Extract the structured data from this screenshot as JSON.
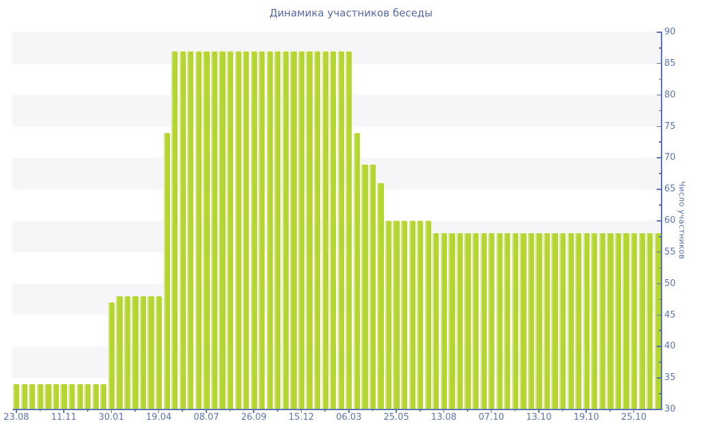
{
  "title": "Динамика участников беседы",
  "y_axis": {
    "label": "Число участников",
    "min": 30,
    "max": 90,
    "major_step": 5,
    "minor_step": 2.5,
    "major_tick_labels": [
      "30",
      "35",
      "40",
      "45",
      "50",
      "55",
      "60",
      "65",
      "70",
      "75",
      "80",
      "85",
      "90"
    ]
  },
  "x_axis": {
    "tick_labels": [
      "23.08",
      "11.11",
      "30.01",
      "19.04",
      "08.07",
      "26.09",
      "15.12",
      "06.03",
      "25.05",
      "13.08",
      "07.10",
      "13.10",
      "19.10",
      "25.10"
    ],
    "ticks_every_n_bars": 6,
    "first_tick_bar_index": 0
  },
  "chart_data": {
    "type": "bar",
    "title": "Динамика участников беседы",
    "ylabel": "Число участников",
    "ylim": [
      30,
      90
    ],
    "grid": "horizontal-stripes",
    "legend": "none",
    "x_tick_labels": [
      "23.08",
      "11.11",
      "30.01",
      "19.04",
      "08.07",
      "26.09",
      "15.12",
      "06.03",
      "25.05",
      "13.08",
      "07.10",
      "13.10",
      "19.10",
      "25.10"
    ],
    "values": [
      34,
      34,
      34,
      34,
      34,
      34,
      34,
      34,
      34,
      34,
      34,
      34,
      47,
      48,
      48,
      48,
      48,
      48,
      48,
      74,
      87,
      87,
      87,
      87,
      87,
      87,
      87,
      87,
      87,
      87,
      87,
      87,
      87,
      87,
      87,
      87,
      87,
      87,
      87,
      87,
      87,
      87,
      87,
      74,
      69,
      69,
      66,
      60,
      60,
      60,
      60,
      60,
      60,
      58,
      58,
      58,
      58,
      58,
      58,
      58,
      58,
      58,
      58,
      58,
      58,
      58,
      58,
      58,
      58,
      58,
      58,
      58,
      58,
      58,
      58,
      58,
      58,
      58,
      58,
      58,
      58,
      58
    ]
  },
  "colors": {
    "bar": "#b4d532",
    "bar_edge": "#d7e97e",
    "axis_line": "#5873b5",
    "tick_label": "#5b74ad",
    "title": "#5668a5",
    "stripe": "#f6f6f8",
    "background": "#ffffff"
  }
}
